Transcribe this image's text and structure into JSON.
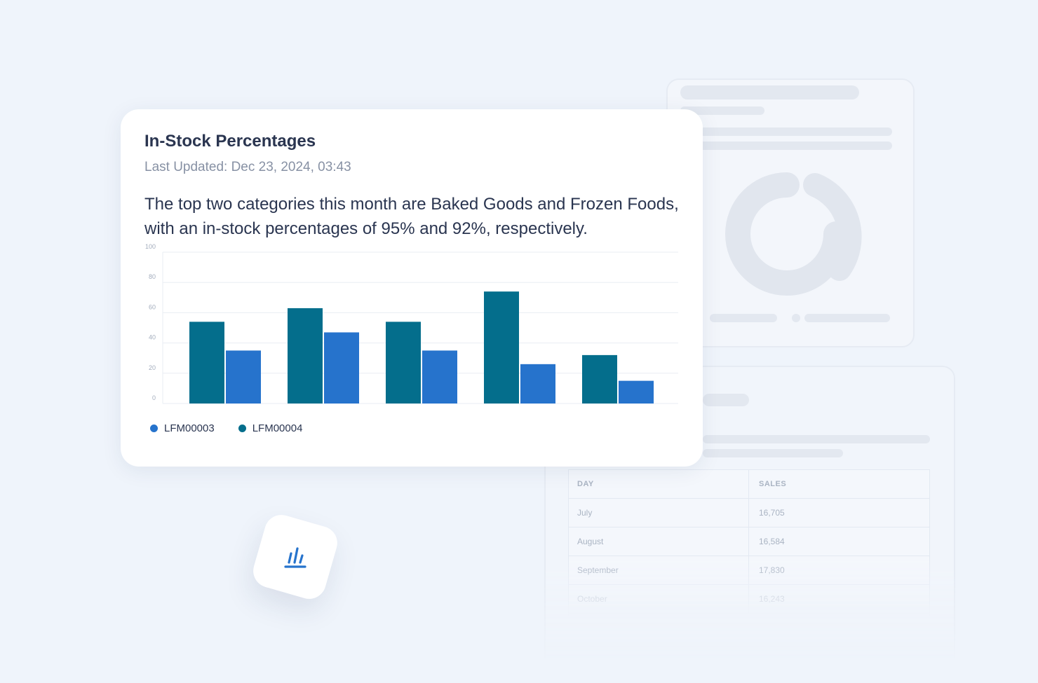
{
  "card": {
    "title": "In-Stock Percentages",
    "subtitle": "Last Updated: Dec 23, 2024, 03:43",
    "summary": "The top two categories this month are Baked Goods and Frozen Foods, with an in-stock percentages of 95% and 92%, respectively."
  },
  "chart_data": {
    "type": "bar",
    "categories": [
      "",
      "",
      "",
      "",
      ""
    ],
    "series": [
      {
        "name": "LFM00004",
        "color": "#046e8c",
        "values": [
          54,
          63,
          54,
          74,
          32
        ]
      },
      {
        "name": "LFM00003",
        "color": "#2673cc",
        "values": [
          35,
          47,
          35,
          26,
          15
        ]
      }
    ],
    "ylim": [
      0,
      100
    ],
    "yticks": [
      0,
      20,
      40,
      60,
      80,
      100
    ],
    "grid": true,
    "legend": {
      "placement": "bottom-left",
      "items": [
        {
          "label": "LFM00003",
          "color": "#2673cc"
        },
        {
          "label": "LFM00004",
          "color": "#046e8c"
        }
      ]
    }
  },
  "background_table": {
    "headers": [
      "DAY",
      "SALES"
    ],
    "rows": [
      [
        "July",
        "16,705"
      ],
      [
        "August",
        "16,584"
      ],
      [
        "September",
        "17,830"
      ],
      [
        "October",
        "16,243"
      ]
    ]
  },
  "icons": {
    "floating_tile": "bar-chart-icon"
  }
}
